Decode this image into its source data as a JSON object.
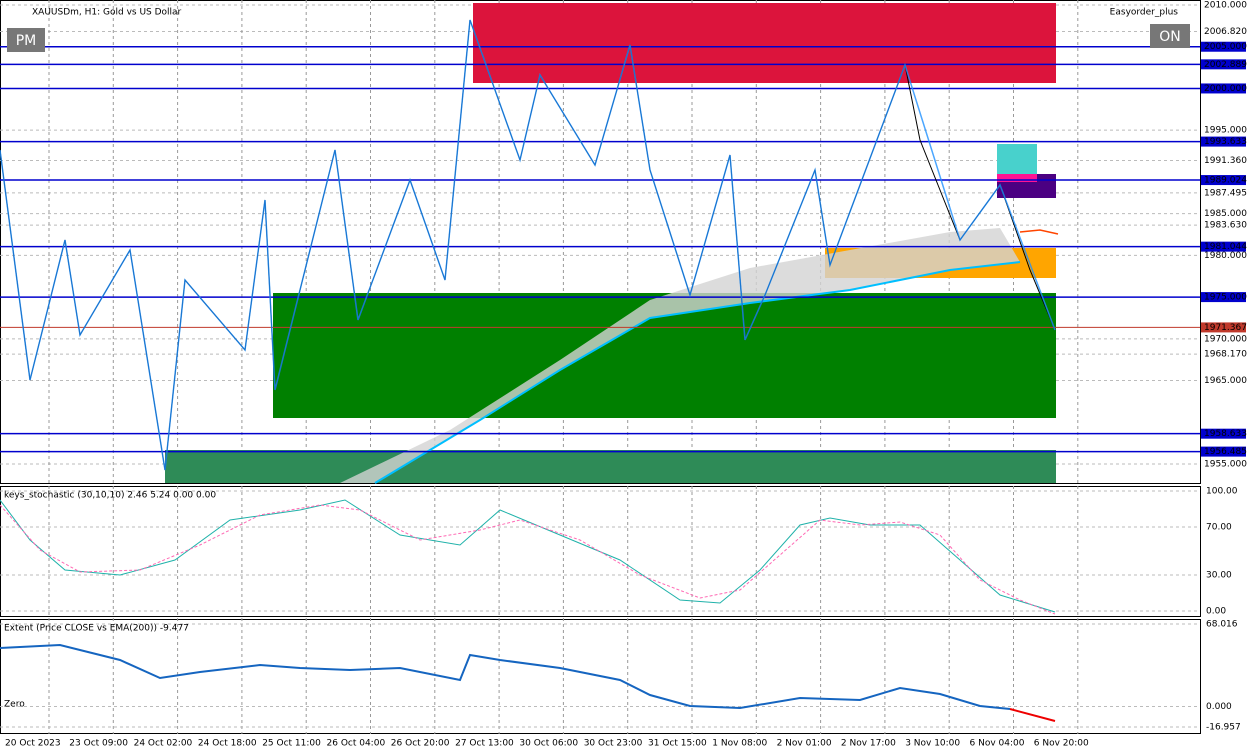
{
  "header": {
    "symbol": "XAUUSDm, H1:  Gold vs US Dollar",
    "expert": "Easyorder_plus",
    "buttons": [
      "PM",
      "ON"
    ]
  },
  "price_axis": {
    "labels": [
      {
        "value": 2010,
        "label": "2010.000"
      },
      {
        "value": 2006.82,
        "label": "2006.820"
      },
      {
        "value": 2005,
        "label": "2005.000",
        "color": "#0000cd"
      },
      {
        "value": 2002.889,
        "label": "2002.889",
        "color": "#0000cd"
      },
      {
        "value": 2000,
        "label": "2000.000",
        "color": "#0000cd"
      },
      {
        "value": 1995,
        "label": "1995.000"
      },
      {
        "value": 1993.633,
        "label": "1993.633",
        "color": "#0000cd"
      },
      {
        "value": 1991.36,
        "label": "1991.360"
      },
      {
        "value": 1989.024,
        "label": "1989.024",
        "color": "#0000cd"
      },
      {
        "value": 1987.495,
        "label": "1987.495"
      },
      {
        "value": 1985,
        "label": "1985.000"
      },
      {
        "value": 1983.63,
        "label": "1983.630"
      },
      {
        "value": 1981.044,
        "label": "1981.044",
        "color": "#0000cd"
      },
      {
        "value": 1980,
        "label": "1980.000"
      },
      {
        "value": 1975,
        "label": "1975.000",
        "color": "#0000cd"
      },
      {
        "value": 1971.367,
        "label": "1971.367",
        "color": "#c0392b"
      },
      {
        "value": 1970,
        "label": "1970.000"
      },
      {
        "value": 1968.17,
        "label": "1968.170"
      },
      {
        "value": 1965,
        "label": "1965.000"
      },
      {
        "value": 1958.633,
        "label": "1958.633",
        "color": "#0000cd"
      },
      {
        "value": 1956.485,
        "label": "1956.485",
        "color": "#0000cd"
      },
      {
        "value": 1955,
        "label": "1955.000"
      }
    ]
  },
  "time_axis": {
    "labels": [
      "20 Oct 2023",
      "23 Oct 09:00",
      "24 Oct 02:00",
      "24 Oct 18:00",
      "25 Oct 11:00",
      "26 Oct 04:00",
      "26 Oct 20:00",
      "27 Oct 13:00",
      "30 Oct 06:00",
      "30 Oct 23:00",
      "31 Oct 15:00",
      "1 Nov 08:00",
      "2 Nov 01:00",
      "2 Nov 17:00",
      "3 Nov 10:00",
      "6 Nov 04:00",
      "6 Nov 20:00"
    ]
  },
  "stochastic": {
    "title": "keys_stochastic (30,10,10) 2.46 5.24 0.00 0.00",
    "ticks": [
      {
        "value": 100,
        "label": "100.00"
      },
      {
        "value": 70,
        "label": "70.00"
      },
      {
        "value": 30,
        "label": "30.00"
      },
      {
        "value": 0,
        "label": "0.00"
      }
    ]
  },
  "extent": {
    "title": "Extent (Price CLOSE vs EMA(200)) -9.477",
    "zero_label": "Zero",
    "ticks": [
      {
        "value": 68.016,
        "label": "68.016"
      },
      {
        "value": 0,
        "label": "0.000"
      },
      {
        "value": -16.957,
        "label": "-16.957"
      }
    ]
  }
}
